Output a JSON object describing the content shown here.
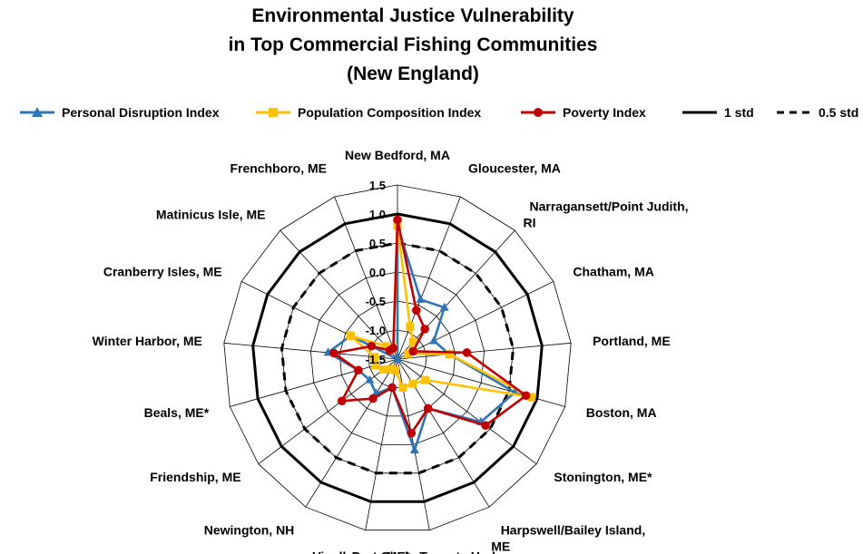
{
  "chart_data": {
    "type": "radar",
    "title": [
      "Environmental Justice Vulnerability",
      "in Top Commercial Fishing Communities",
      "(New England)"
    ],
    "categories": [
      "New Bedford, MA",
      "Gloucester, MA",
      "Narragansett/Point Judith, RI",
      "Chatham, MA",
      "Portland, ME",
      "Boston, MA",
      "Stonington, ME*",
      "Harpswell/Bailey Island, ME",
      "Port Clyde-Tenants Harbor, ME",
      "Vinalhaven, ME*",
      "Newington, NH",
      "Friendship, ME",
      "Beals, ME*",
      "Winter Harbor, ME",
      "Cranberry Isles, ME",
      "Matinicus Isle, ME",
      "Frenchboro, ME"
    ],
    "r_range": [
      -1.5,
      1.5
    ],
    "r_ticks": [
      "1.5",
      "1.0",
      "0.5",
      "0.0",
      "-0.5",
      "-1.0",
      "-1.5"
    ],
    "grid": true,
    "legend_position": "top",
    "series": [
      {
        "name": "Personal Disruption Index",
        "color": "#2e75b6",
        "marker": "triangle",
        "values": [
          0.8,
          -0.4,
          -0.3,
          -0.8,
          -0.6,
          0.6,
          0.3,
          -0.5,
          0.1,
          -1.0,
          -0.8,
          -0.9,
          -0.8,
          -0.3,
          -0.6,
          -1.5,
          -1.5
        ]
      },
      {
        "name": "Population Composition Index",
        "color": "#ffc000",
        "marker": "square",
        "values": [
          0.8,
          -0.9,
          -1.1,
          -1.3,
          -0.6,
          0.9,
          -0.9,
          -1.0,
          -1.0,
          -1.3,
          -1.3,
          -1.2,
          -1.1,
          -1.1,
          -0.6,
          -1.2,
          -1.3
        ]
      },
      {
        "name": "Poverty Index",
        "color": "#c00000",
        "marker": "circle",
        "values": [
          0.9,
          -0.6,
          -0.8,
          -1.2,
          -0.3,
          0.8,
          0.4,
          -0.5,
          -0.2,
          -1.0,
          -0.7,
          -0.3,
          -0.8,
          -0.4,
          -1.0,
          -1.3,
          -1.3
        ]
      }
    ],
    "reference_lines": [
      {
        "name": "1 std",
        "value": 1.0,
        "style": "solid",
        "color": "#000000"
      },
      {
        "name": "0.5 std",
        "value": 0.5,
        "style": "dashed",
        "color": "#000000"
      }
    ]
  }
}
